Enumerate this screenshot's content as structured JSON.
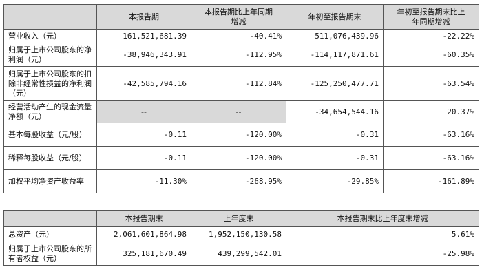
{
  "table1": {
    "headers": [
      "",
      "本报告期",
      "本报告期比上年同期\n增减",
      "年初至报告期末",
      "年初至报告期末比上\n年同期增减"
    ],
    "rows": [
      {
        "label": "营业收入（元）",
        "c1": "161,521,681.39",
        "c2": "-40.41%",
        "c3": "511,076,439.96",
        "c4": "-22.22%"
      },
      {
        "label": "归属于上市公司股东的净利润（元）",
        "c1": "-38,946,343.91",
        "c2": "-112.95%",
        "c3": "-114,117,871.61",
        "c4": "-60.35%"
      },
      {
        "label": "归属于上市公司股东的扣除非经常性损益的净利润（元）",
        "c1": "-42,585,794.16",
        "c2": "-112.84%",
        "c3": "-125,250,477.71",
        "c4": "-63.54%"
      },
      {
        "label": "经营活动产生的现金流量净额（元）",
        "c1": "--",
        "c2": "--",
        "c3": "-34,654,544.16",
        "c4": "20.37%"
      },
      {
        "label": "基本每股收益（元/股）",
        "c1": "-0.11",
        "c2": "-120.00%",
        "c3": "-0.31",
        "c4": "-63.16%"
      },
      {
        "label": "稀释每股收益（元/股）",
        "c1": "-0.11",
        "c2": "-120.00%",
        "c3": "-0.31",
        "c4": "-63.16%"
      },
      {
        "label": "加权平均净资产收益率",
        "c1": "-11.30%",
        "c2": "-268.95%",
        "c3": "-29.85%",
        "c4": "-161.89%"
      }
    ]
  },
  "table2": {
    "headers": [
      "",
      "本报告期末",
      "上年度末",
      "本报告期末比上年度末增减"
    ],
    "rows": [
      {
        "label": "总资产（元）",
        "c1": "2,061,601,864.98",
        "c2": "1,952,150,130.58",
        "c3": "5.61%"
      },
      {
        "label": "归属于上市公司股东的所有者权益（元）",
        "c1": "325,181,670.49",
        "c2": "439,299,542.01",
        "c3": "-25.98%"
      }
    ]
  },
  "colors": {
    "header_bg": "#d9d9d9",
    "border": "#555555"
  }
}
